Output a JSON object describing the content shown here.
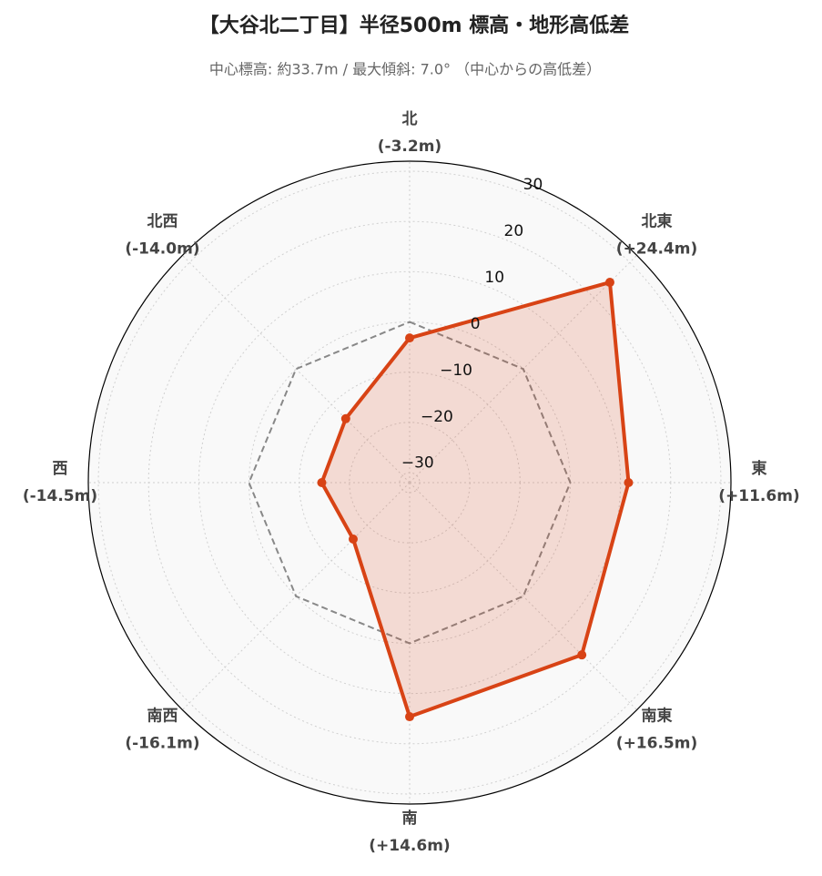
{
  "chart_data": {
    "type": "radar",
    "title": "【大谷北二丁目】半径500m 標高・地形高低差",
    "subtitle": "中心標高: 約33.7m / 最大傾斜: 7.0° （中心からの高低差）",
    "categories": [
      "北",
      "北東",
      "東",
      "南東",
      "南",
      "南西",
      "西",
      "北西"
    ],
    "values": [
      -3.2,
      24.4,
      11.6,
      16.5,
      14.6,
      -16.1,
      -14.5,
      -14.0
    ],
    "value_labels": [
      "(-3.2m)",
      "(+24.4m)",
      "(+11.6m)",
      "(+16.5m)",
      "(+14.6m)",
      "(-16.1m)",
      "(-14.5m)",
      "(-14.0m)"
    ],
    "color": "#d84315",
    "ylim": [
      -32,
      32
    ],
    "yticks": [
      {
        "value": -30,
        "label": "−30"
      },
      {
        "value": -20,
        "label": "−20"
      },
      {
        "value": -10,
        "label": "−10"
      },
      0,
      10,
      20,
      30
    ],
    "grid": true,
    "reference_line": {
      "value": 0,
      "color": "#888888"
    }
  }
}
